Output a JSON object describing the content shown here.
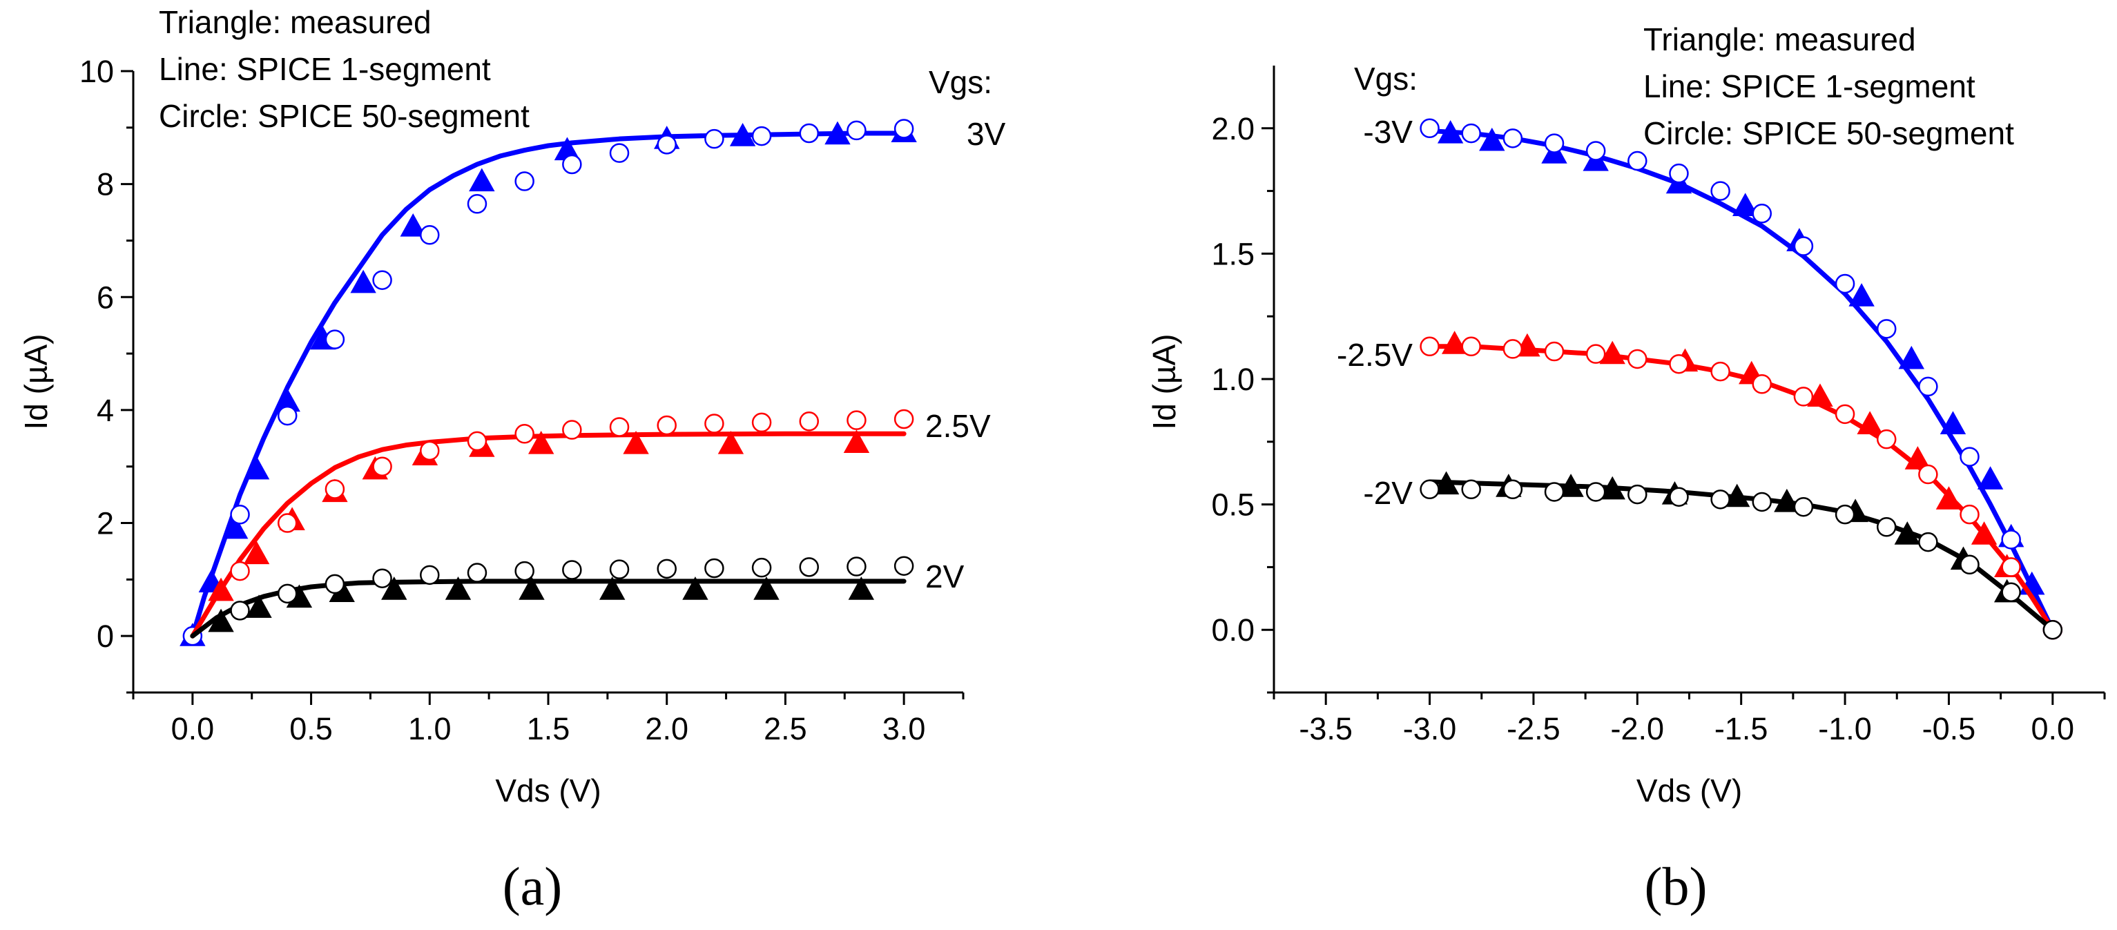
{
  "chart_data": [
    {
      "id": "a",
      "type": "line",
      "panel_label": "(a)",
      "xlabel": "Vds (V)",
      "ylabel": "Id (µA)",
      "xlim": [
        -0.25,
        3.25
      ],
      "ylim": [
        -1,
        10
      ],
      "xticks": [
        0.0,
        0.5,
        1.0,
        1.5,
        2.0,
        2.5,
        3.0
      ],
      "xtick_labels": [
        "0.0",
        "0.5",
        "1.0",
        "1.5",
        "2.0",
        "2.5",
        "3.0"
      ],
      "yticks": [
        0,
        2,
        4,
        6,
        8,
        10
      ],
      "ytick_labels": [
        "0",
        "2",
        "4",
        "6",
        "8",
        "10"
      ],
      "legend_notes": [
        "Triangle: measured",
        "Line: SPICE 1-segment",
        "Circle: SPICE 50-segment"
      ],
      "vgs_title": "Vgs:",
      "series": [
        {
          "name": "3V",
          "color": "#0000ff",
          "line": {
            "x": [
              0,
              0.05,
              0.1,
              0.15,
              0.2,
              0.3,
              0.4,
              0.5,
              0.6,
              0.7,
              0.8,
              0.9,
              1.0,
              1.1,
              1.2,
              1.3,
              1.4,
              1.5,
              1.6,
              1.8,
              2.0,
              2.2,
              2.5,
              2.8,
              3.0
            ],
            "y": [
              0,
              0.7,
              1.3,
              1.9,
              2.5,
              3.5,
              4.4,
              5.2,
              5.9,
              6.5,
              7.1,
              7.55,
              7.9,
              8.15,
              8.35,
              8.5,
              8.6,
              8.68,
              8.73,
              8.8,
              8.84,
              8.86,
              8.88,
              8.9,
              8.9
            ]
          },
          "measured": {
            "x": [
              0,
              0.08,
              0.18,
              0.27,
              0.4,
              0.55,
              0.72,
              0.93,
              1.22,
              1.58,
              2.0,
              2.32,
              2.72,
              3.0
            ],
            "y": [
              0,
              0.95,
              1.9,
              2.95,
              4.15,
              5.25,
              6.25,
              7.25,
              8.05,
              8.6,
              8.8,
              8.85,
              8.88,
              8.92
            ]
          },
          "circle": {
            "x": [
              0,
              0.2,
              0.4,
              0.6,
              0.8,
              1.0,
              1.2,
              1.4,
              1.6,
              1.8,
              2.0,
              2.2,
              2.4,
              2.6,
              2.8,
              3.0
            ],
            "y": [
              0,
              2.15,
              3.9,
              5.25,
              6.3,
              7.1,
              7.65,
              8.05,
              8.35,
              8.55,
              8.7,
              8.8,
              8.85,
              8.9,
              8.95,
              8.98
            ]
          }
        },
        {
          "name": "2.5V",
          "color": "#ff0000",
          "line": {
            "x": [
              0,
              0.1,
              0.2,
              0.3,
              0.4,
              0.5,
              0.6,
              0.7,
              0.8,
              0.9,
              1.0,
              1.2,
              1.4,
              1.6,
              1.8,
              2.0,
              2.5,
              3.0
            ],
            "y": [
              0,
              0.7,
              1.35,
              1.9,
              2.35,
              2.7,
              2.98,
              3.17,
              3.3,
              3.38,
              3.43,
              3.5,
              3.53,
              3.55,
              3.56,
              3.57,
              3.58,
              3.58
            ]
          },
          "measured": {
            "x": [
              0.12,
              0.27,
              0.42,
              0.6,
              0.77,
              0.98,
              1.22,
              1.47,
              1.87,
              2.27,
              2.8
            ],
            "y": [
              0.8,
              1.45,
              2.05,
              2.55,
              2.95,
              3.2,
              3.35,
              3.4,
              3.4,
              3.4,
              3.42
            ]
          },
          "circle": {
            "x": [
              0.2,
              0.4,
              0.6,
              0.8,
              1.0,
              1.2,
              1.4,
              1.6,
              1.8,
              2.0,
              2.2,
              2.4,
              2.6,
              2.8,
              3.0
            ],
            "y": [
              1.15,
              2.0,
              2.6,
              3.0,
              3.28,
              3.45,
              3.58,
              3.65,
              3.7,
              3.73,
              3.76,
              3.78,
              3.8,
              3.82,
              3.84
            ]
          }
        },
        {
          "name": "2V",
          "color": "#000000",
          "line": {
            "x": [
              0,
              0.1,
              0.2,
              0.3,
              0.4,
              0.5,
              0.6,
              0.7,
              0.8,
              1.0,
              1.2,
              1.5,
              2.0,
              2.5,
              3.0
            ],
            "y": [
              0,
              0.32,
              0.55,
              0.7,
              0.8,
              0.87,
              0.91,
              0.94,
              0.95,
              0.96,
              0.97,
              0.97,
              0.97,
              0.97,
              0.97
            ]
          },
          "measured": {
            "x": [
              0.12,
              0.28,
              0.45,
              0.63,
              0.85,
              1.12,
              1.43,
              1.77,
              2.12,
              2.42,
              2.82
            ],
            "y": [
              0.25,
              0.5,
              0.68,
              0.78,
              0.82,
              0.82,
              0.82,
              0.82,
              0.82,
              0.82,
              0.82
            ]
          },
          "circle": {
            "x": [
              0.2,
              0.4,
              0.6,
              0.8,
              1.0,
              1.2,
              1.4,
              1.6,
              1.8,
              2.0,
              2.2,
              2.4,
              2.6,
              2.8,
              3.0
            ],
            "y": [
              0.45,
              0.75,
              0.92,
              1.02,
              1.08,
              1.12,
              1.15,
              1.17,
              1.18,
              1.19,
              1.2,
              1.21,
              1.22,
              1.23,
              1.24
            ]
          }
        }
      ]
    },
    {
      "id": "b",
      "type": "line",
      "panel_label": "(b)",
      "xlabel": "Vds (V)",
      "ylabel": "Id (µA)",
      "xlim": [
        -3.75,
        0.25
      ],
      "ylim": [
        -0.25,
        2.25
      ],
      "xticks": [
        -3.5,
        -3.0,
        -2.5,
        -2.0,
        -1.5,
        -1.0,
        -0.5,
        0.0
      ],
      "xtick_labels": [
        "-3.5",
        "-3.0",
        "-2.5",
        "-2.0",
        "-1.5",
        "-1.0",
        "-0.5",
        "0.0"
      ],
      "yticks": [
        0.0,
        0.5,
        1.0,
        1.5,
        2.0
      ],
      "ytick_labels": [
        "0.0",
        "0.5",
        "1.0",
        "1.5",
        "2.0"
      ],
      "legend_notes": [
        "Triangle: measured",
        "Line: SPICE 1-segment",
        "Circle: SPICE 50-segment"
      ],
      "vgs_title": "Vgs:",
      "series": [
        {
          "name": "-3V",
          "color": "#0000ff",
          "line": {
            "x": [
              -3.0,
              -2.8,
              -2.6,
              -2.4,
              -2.2,
              -2.0,
              -1.8,
              -1.6,
              -1.4,
              -1.2,
              -1.0,
              -0.8,
              -0.6,
              -0.4,
              -0.3,
              -0.2,
              -0.1,
              0.0
            ],
            "y": [
              1.99,
              1.98,
              1.96,
              1.93,
              1.89,
              1.84,
              1.78,
              1.7,
              1.61,
              1.49,
              1.34,
              1.15,
              0.92,
              0.65,
              0.5,
              0.34,
              0.17,
              0.0
            ]
          },
          "measured": {
            "x": [
              -2.9,
              -2.7,
              -2.4,
              -2.2,
              -1.8,
              -1.48,
              -1.22,
              -0.92,
              -0.68,
              -0.48,
              -0.3,
              -0.2,
              -0.1
            ],
            "y": [
              1.98,
              1.95,
              1.9,
              1.87,
              1.78,
              1.69,
              1.55,
              1.33,
              1.08,
              0.82,
              0.6,
              0.37,
              0.18
            ]
          },
          "circle": {
            "x": [
              -3.0,
              -2.8,
              -2.6,
              -2.4,
              -2.2,
              -2.0,
              -1.8,
              -1.6,
              -1.4,
              -1.2,
              -1.0,
              -0.8,
              -0.6,
              -0.4,
              -0.2,
              0.0
            ],
            "y": [
              2.0,
              1.98,
              1.96,
              1.94,
              1.91,
              1.87,
              1.82,
              1.75,
              1.66,
              1.53,
              1.38,
              1.2,
              0.97,
              0.69,
              0.36,
              0.0
            ]
          }
        },
        {
          "name": "-2.5V",
          "color": "#ff0000",
          "line": {
            "x": [
              -3.0,
              -2.8,
              -2.6,
              -2.4,
              -2.2,
              -2.0,
              -1.8,
              -1.6,
              -1.4,
              -1.2,
              -1.0,
              -0.8,
              -0.6,
              -0.4,
              -0.2,
              -0.1,
              0.0
            ],
            "y": [
              1.13,
              1.13,
              1.12,
              1.11,
              1.1,
              1.08,
              1.06,
              1.03,
              0.99,
              0.93,
              0.85,
              0.75,
              0.62,
              0.45,
              0.25,
              0.13,
              0.0
            ]
          },
          "measured": {
            "x": [
              -2.88,
              -2.53,
              -2.12,
              -1.77,
              -1.45,
              -1.12,
              -0.88,
              -0.65,
              -0.5,
              -0.33,
              -0.22
            ],
            "y": [
              1.14,
              1.13,
              1.1,
              1.07,
              1.02,
              0.93,
              0.82,
              0.68,
              0.52,
              0.38,
              0.25
            ]
          },
          "circle": {
            "x": [
              -3.0,
              -2.8,
              -2.6,
              -2.4,
              -2.2,
              -2.0,
              -1.8,
              -1.6,
              -1.4,
              -1.2,
              -1.0,
              -0.8,
              -0.6,
              -0.4,
              -0.2,
              0.0
            ],
            "y": [
              1.13,
              1.13,
              1.12,
              1.11,
              1.1,
              1.08,
              1.06,
              1.03,
              0.98,
              0.93,
              0.86,
              0.76,
              0.62,
              0.46,
              0.25,
              0.0
            ]
          }
        },
        {
          "name": "-2V",
          "color": "#000000",
          "line": {
            "x": [
              -3.0,
              -2.6,
              -2.2,
              -1.8,
              -1.4,
              -1.2,
              -1.0,
              -0.8,
              -0.6,
              -0.4,
              -0.2,
              -0.1,
              0.0
            ],
            "y": [
              0.59,
              0.58,
              0.57,
              0.55,
              0.52,
              0.5,
              0.47,
              0.42,
              0.36,
              0.27,
              0.14,
              0.07,
              0.0
            ]
          },
          "measured": {
            "x": [
              -2.92,
              -2.62,
              -2.32,
              -2.12,
              -1.82,
              -1.52,
              -1.28,
              -0.95,
              -0.7,
              -0.43,
              -0.22
            ],
            "y": [
              0.58,
              0.57,
              0.57,
              0.56,
              0.54,
              0.53,
              0.51,
              0.47,
              0.38,
              0.28,
              0.15
            ]
          },
          "circle": {
            "x": [
              -3.0,
              -2.8,
              -2.6,
              -2.4,
              -2.2,
              -2.0,
              -1.8,
              -1.6,
              -1.4,
              -1.2,
              -1.0,
              -0.8,
              -0.6,
              -0.4,
              -0.2,
              0.0
            ],
            "y": [
              0.56,
              0.56,
              0.56,
              0.55,
              0.55,
              0.54,
              0.53,
              0.52,
              0.51,
              0.49,
              0.46,
              0.41,
              0.35,
              0.26,
              0.15,
              0.0
            ]
          }
        }
      ]
    }
  ]
}
